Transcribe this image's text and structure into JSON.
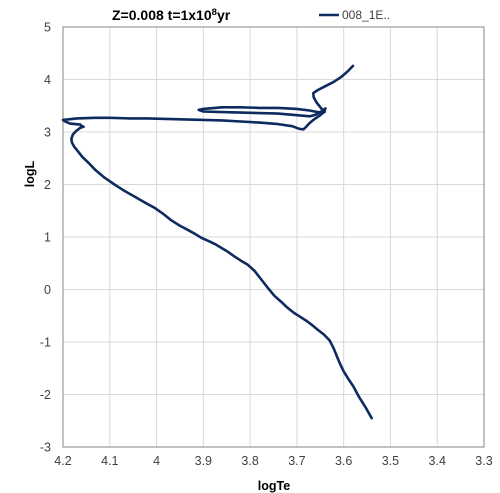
{
  "chart_data": {
    "type": "line",
    "title_main": "Z=0.008 t=1x10",
    "title_sup": "8",
    "title_tail": "yr",
    "xlabel": "logTe",
    "ylabel": "logL",
    "xlim": [
      4.2,
      3.3
    ],
    "ylim": [
      -3,
      5
    ],
    "x_reversed": true,
    "x_ticks": [
      4.2,
      4.1,
      4,
      3.9,
      3.8,
      3.7,
      3.6,
      3.5,
      3.4,
      3.3
    ],
    "x_tick_labels": [
      "4.2",
      "4.1",
      "4",
      "3.9",
      "3.8",
      "3.7",
      "3.6",
      "3.5",
      "3.4",
      "3.3"
    ],
    "y_ticks": [
      -3,
      -2,
      -1,
      0,
      1,
      2,
      3,
      4,
      5
    ],
    "y_tick_labels": [
      "-3",
      "-2",
      "-1",
      "0",
      "1",
      "2",
      "3",
      "4",
      "5"
    ],
    "grid": true,
    "legend_position": "top-right",
    "colors": {
      "series": "#0d2b5e",
      "grid": "#d9d9d9",
      "axis": "#868686"
    },
    "series": [
      {
        "name": "008_1E..",
        "x": [
          3.54,
          3.553,
          3.567,
          3.579,
          3.59,
          3.6,
          3.608,
          3.615,
          3.622,
          3.63,
          3.642,
          3.655,
          3.667,
          3.679,
          3.693,
          3.707,
          3.721,
          3.734,
          3.748,
          3.762,
          3.777,
          3.791,
          3.805,
          3.82,
          3.835,
          3.848,
          3.861,
          3.874,
          3.888,
          3.903,
          3.918,
          3.934,
          3.951,
          3.969,
          3.987,
          4.005,
          4.026,
          4.047,
          4.069,
          4.09,
          4.111,
          4.13,
          4.145,
          4.158,
          4.168,
          4.176,
          4.181,
          4.182,
          4.179,
          4.172,
          4.163,
          4.156,
          4.161,
          4.163,
          4.185,
          4.195,
          4.2,
          4.17,
          4.13,
          4.1,
          4.06,
          4.02,
          3.98,
          3.94,
          3.9,
          3.86,
          3.82,
          3.78,
          3.74,
          3.71,
          3.695,
          3.686,
          3.68,
          3.673,
          3.662,
          3.65,
          3.641,
          3.639,
          3.643,
          3.65,
          3.66,
          3.672,
          3.7,
          3.74,
          3.78,
          3.82,
          3.86,
          3.9,
          3.91,
          3.9,
          3.86,
          3.82,
          3.78,
          3.74,
          3.7,
          3.673,
          3.655,
          3.645,
          3.641,
          3.647,
          3.657,
          3.664,
          3.665,
          3.655,
          3.64,
          3.622,
          3.605,
          3.592,
          3.58
        ],
        "y": [
          -2.45,
          -2.25,
          -2.05,
          -1.85,
          -1.7,
          -1.56,
          -1.41,
          -1.26,
          -1.11,
          -0.97,
          -0.86,
          -0.77,
          -0.68,
          -0.6,
          -0.52,
          -0.44,
          -0.34,
          -0.23,
          -0.12,
          0.03,
          0.2,
          0.36,
          0.47,
          0.55,
          0.64,
          0.72,
          0.79,
          0.86,
          0.92,
          0.98,
          1.06,
          1.14,
          1.22,
          1.32,
          1.45,
          1.56,
          1.66,
          1.77,
          1.88,
          2.0,
          2.13,
          2.27,
          2.41,
          2.52,
          2.63,
          2.72,
          2.8,
          2.87,
          2.95,
          3.02,
          3.08,
          3.1,
          3.12,
          3.14,
          3.16,
          3.2,
          3.23,
          3.26,
          3.27,
          3.27,
          3.26,
          3.26,
          3.25,
          3.24,
          3.23,
          3.22,
          3.2,
          3.18,
          3.15,
          3.11,
          3.06,
          3.05,
          3.1,
          3.17,
          3.25,
          3.32,
          3.39,
          3.45,
          3.42,
          3.38,
          3.33,
          3.3,
          3.32,
          3.35,
          3.36,
          3.37,
          3.38,
          3.39,
          3.42,
          3.44,
          3.47,
          3.47,
          3.46,
          3.46,
          3.44,
          3.41,
          3.38,
          3.37,
          3.38,
          3.44,
          3.55,
          3.66,
          3.74,
          3.8,
          3.87,
          3.95,
          4.05,
          4.15,
          4.26
        ]
      }
    ]
  }
}
